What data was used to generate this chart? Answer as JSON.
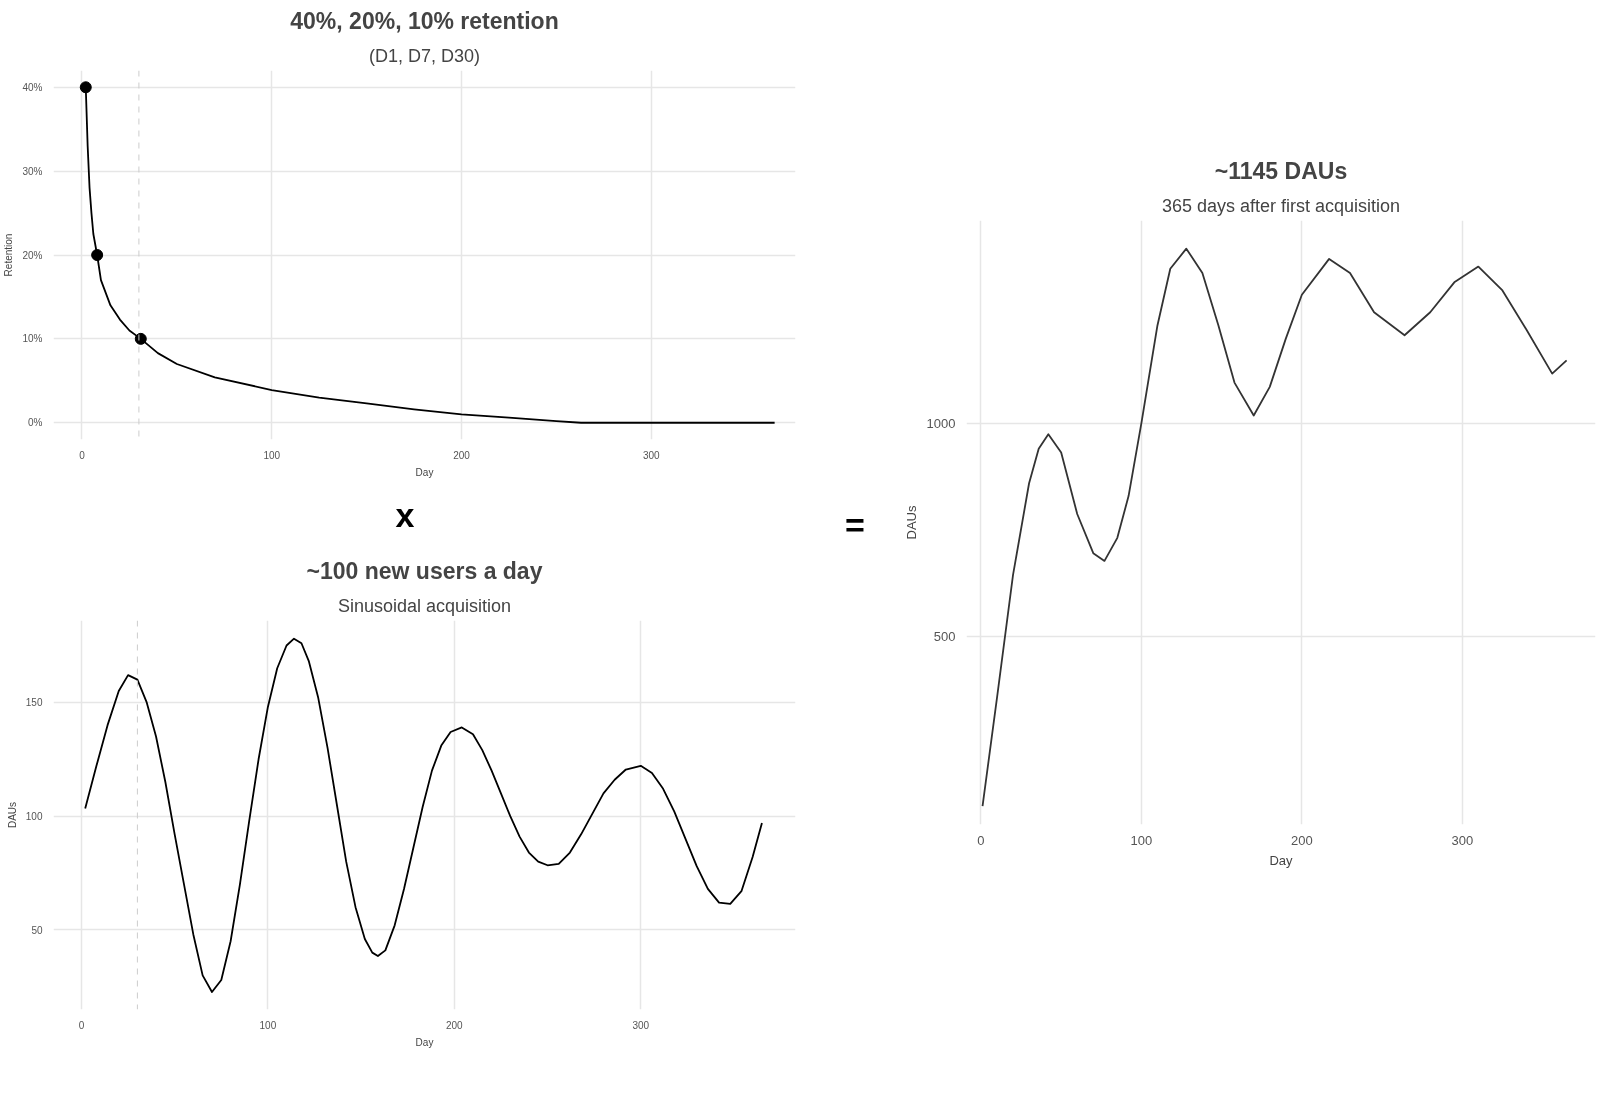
{
  "chart_data": [
    {
      "type": "line",
      "title": "40%, 20%, 10% retention",
      "subtitle": "(D1, D7, D30)",
      "xlabel": "Day",
      "ylabel": "Retention",
      "series": [
        {
          "type": "line",
          "marker": "none",
          "color": "#000000",
          "x": [
            2,
            3,
            4,
            5,
            6,
            8,
            10,
            15,
            20,
            25,
            31,
            40,
            50,
            70,
            100,
            125,
            150,
            175,
            200,
            225,
            250,
            263,
            300,
            365
          ],
          "values": [
            40,
            33,
            28,
            25,
            22.5,
            20,
            17,
            14,
            12.3,
            11,
            10,
            8.3,
            7,
            5.4,
            3.9,
            3,
            2.3,
            1.6,
            1,
            0.6,
            0.2,
            0,
            0,
            0
          ]
        },
        {
          "type": "scatter",
          "marker": "circle",
          "color": "#000000",
          "x": [
            2,
            8,
            31
          ],
          "values": [
            40,
            20,
            10
          ]
        }
      ],
      "line_style": "solid",
      "xlim": [
        -15,
        376
      ],
      "ylim": [
        -2,
        42
      ],
      "xticks": [
        0,
        100,
        200,
        300
      ],
      "yticks": [
        {
          "value": 0,
          "label": "0%"
        },
        {
          "value": 10,
          "label": "10%"
        },
        {
          "value": 20,
          "label": "20%"
        },
        {
          "value": 30,
          "label": "30%"
        },
        {
          "value": 40,
          "label": "40%"
        }
      ],
      "grid": true,
      "ref_lines": [
        {
          "axis": "x",
          "value": 30,
          "color": "#cccccc",
          "line_style": "dashed"
        }
      ],
      "annotations": [
        "x"
      ]
    },
    {
      "type": "line",
      "title": "~100 new users a day",
      "subtitle": "Sinusoidal acquisition",
      "xlabel": "Day",
      "ylabel": "DAUs",
      "series": [
        {
          "color": "#000000",
          "x": [
            2,
            8,
            14,
            20,
            25,
            30,
            35,
            40,
            45,
            50,
            55,
            60,
            65,
            70,
            75,
            80,
            85,
            90,
            95,
            100,
            105,
            110,
            114,
            118,
            122,
            127,
            132,
            137,
            142,
            147,
            152,
            156,
            159,
            163,
            168,
            173,
            178,
            183,
            188,
            193,
            198,
            204,
            210,
            215,
            220,
            225,
            230,
            235,
            240,
            245,
            250,
            256,
            262,
            268,
            274,
            280,
            286,
            292,
            300,
            306,
            312,
            318,
            324,
            330,
            336,
            342,
            348,
            354,
            360,
            365
          ],
          "values": [
            103.4,
            122,
            140,
            155,
            162,
            160,
            150,
            135,
            115,
            92,
            70,
            48,
            30,
            22.7,
            28,
            45,
            70,
            98,
            125,
            148,
            165,
            175,
            178,
            176,
            168,
            152,
            130,
            105,
            80,
            60,
            46,
            40,
            38.5,
            41,
            52,
            68,
            86,
            104,
            120,
            131,
            137,
            139,
            136,
            129,
            120,
            110,
            100,
            91,
            84,
            80,
            78.4,
            79,
            84,
            92,
            101,
            110,
            116,
            120.5,
            122.1,
            119,
            112,
            102,
            90,
            78,
            68,
            62,
            61.4,
            67,
            82,
            97
          ]
        }
      ],
      "line_style": "solid",
      "xlim": [
        -15,
        383
      ],
      "ylim": [
        15,
        186
      ],
      "xticks": [
        0,
        100,
        200,
        300
      ],
      "yticks": [
        50,
        100,
        150
      ],
      "grid": true,
      "ref_lines": [
        {
          "axis": "x",
          "value": 30,
          "color": "#cccccc",
          "line_style": "dashed"
        }
      ]
    },
    {
      "type": "line",
      "title": "~1145 DAUs",
      "subtitle": "365 days after first acquisition",
      "xlabel": "Day",
      "ylabel": "DAUs",
      "series": [
        {
          "color": "#333333",
          "x": [
            1,
            10,
            20,
            30,
            36,
            42,
            50,
            60,
            70,
            77,
            85,
            92,
            100,
            110,
            118,
            128,
            138,
            148,
            158,
            170,
            180,
            190,
            200,
            217,
            230,
            245,
            264,
            280,
            295,
            310,
            325,
            340,
            356,
            365
          ],
          "values": [
            102,
            356,
            644,
            859,
            940,
            974,
            931,
            787,
            695,
            677,
            731,
            829,
            1000,
            1229,
            1362,
            1409,
            1352,
            1229,
            1095,
            1018,
            1085,
            1198,
            1301,
            1385,
            1352,
            1260,
            1206,
            1260,
            1330,
            1367,
            1311,
            1219,
            1116,
            1147
          ]
        }
      ],
      "line_style": "solid",
      "xlim": [
        -9,
        383
      ],
      "ylim": [
        59,
        1475
      ],
      "xticks": [
        0,
        100,
        200,
        300
      ],
      "yticks": [
        500,
        1000
      ],
      "grid": true,
      "annotations": [
        "="
      ]
    }
  ]
}
